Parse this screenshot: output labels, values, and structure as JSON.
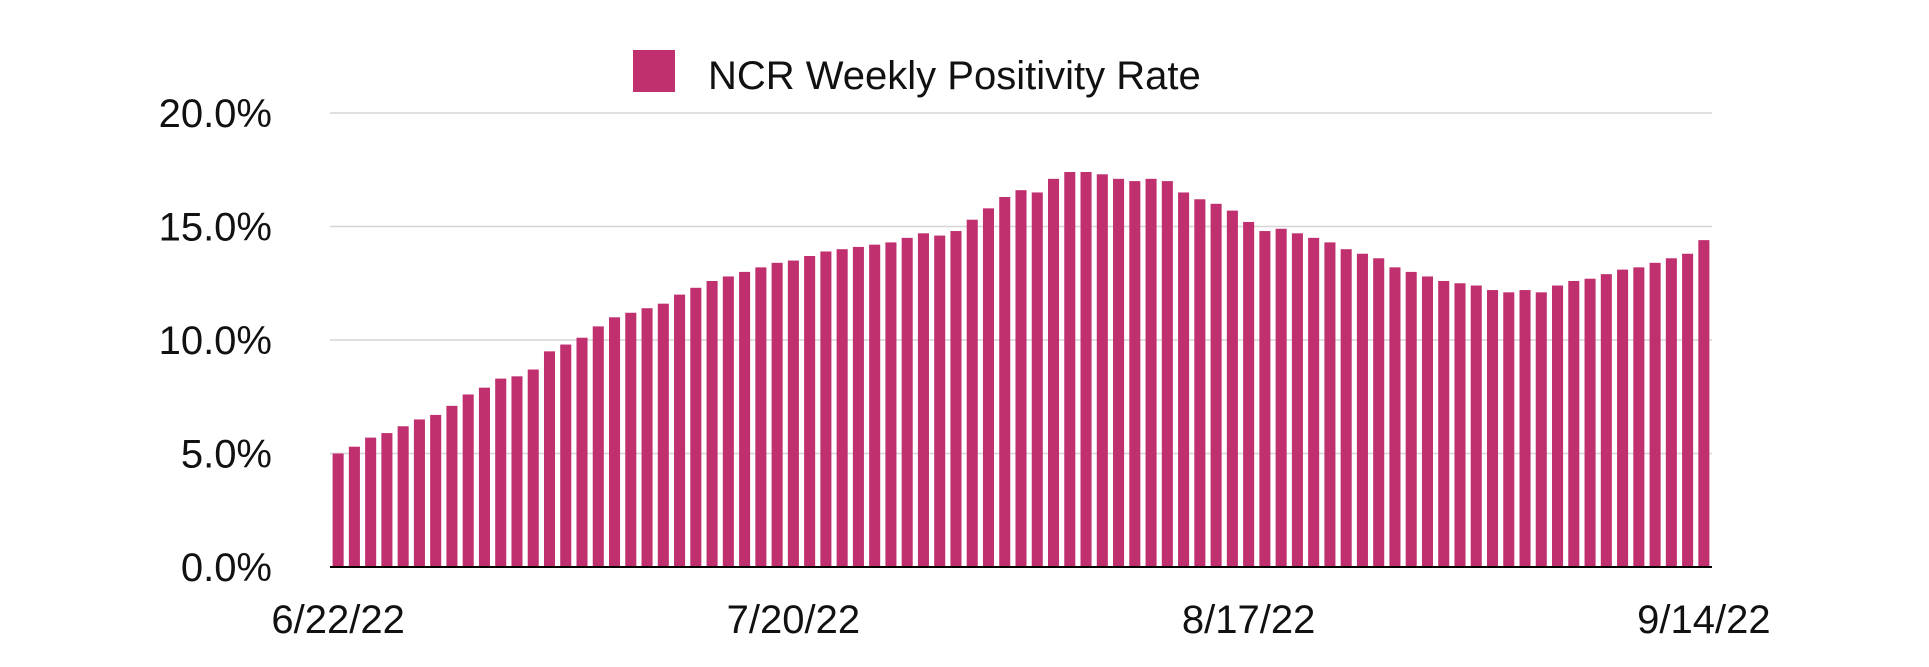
{
  "chart_data": {
    "type": "bar",
    "legend": {
      "label": "NCR Weekly Positivity Rate",
      "position": "top-center"
    },
    "color": "#c0306f",
    "ylim": [
      0,
      20
    ],
    "y_ticks": [
      "0.0%",
      "5.0%",
      "10.0%",
      "15.0%",
      "20.0%"
    ],
    "x_ticks": [
      {
        "label": "6/22/22",
        "index": 0
      },
      {
        "label": "7/20/22",
        "index": 28
      },
      {
        "label": "8/17/22",
        "index": 56
      },
      {
        "label": "9/14/22",
        "index": 84
      }
    ],
    "grid": true,
    "categories": [
      "6/22/22",
      "6/23/22",
      "6/24/22",
      "6/25/22",
      "6/26/22",
      "6/27/22",
      "6/28/22",
      "6/29/22",
      "6/30/22",
      "7/1/22",
      "7/2/22",
      "7/3/22",
      "7/4/22",
      "7/5/22",
      "7/6/22",
      "7/7/22",
      "7/8/22",
      "7/9/22",
      "7/10/22",
      "7/11/22",
      "7/12/22",
      "7/13/22",
      "7/14/22",
      "7/15/22",
      "7/16/22",
      "7/17/22",
      "7/18/22",
      "7/19/22",
      "7/20/22",
      "7/21/22",
      "7/22/22",
      "7/23/22",
      "7/24/22",
      "7/25/22",
      "7/26/22",
      "7/27/22",
      "7/28/22",
      "7/29/22",
      "7/30/22",
      "7/31/22",
      "8/1/22",
      "8/2/22",
      "8/3/22",
      "8/4/22",
      "8/5/22",
      "8/6/22",
      "8/7/22",
      "8/8/22",
      "8/9/22",
      "8/10/22",
      "8/11/22",
      "8/12/22",
      "8/13/22",
      "8/14/22",
      "8/15/22",
      "8/16/22",
      "8/17/22",
      "8/18/22",
      "8/19/22",
      "8/20/22",
      "8/21/22",
      "8/22/22",
      "8/23/22",
      "8/24/22",
      "8/25/22",
      "8/26/22",
      "8/27/22",
      "8/28/22",
      "8/29/22",
      "8/30/22",
      "8/31/22",
      "9/1/22",
      "9/2/22",
      "9/3/22",
      "9/4/22",
      "9/5/22",
      "9/6/22",
      "9/7/22",
      "9/8/22",
      "9/9/22",
      "9/10/22",
      "9/11/22",
      "9/12/22",
      "9/13/22",
      "9/14/22"
    ],
    "values": [
      5.0,
      5.3,
      5.7,
      5.9,
      6.2,
      6.5,
      6.7,
      7.1,
      7.6,
      7.9,
      8.3,
      8.4,
      8.7,
      9.5,
      9.8,
      10.1,
      10.6,
      11.0,
      11.2,
      11.4,
      11.6,
      12.0,
      12.3,
      12.6,
      12.8,
      13.0,
      13.2,
      13.4,
      13.5,
      13.7,
      13.9,
      14.0,
      14.1,
      14.2,
      14.3,
      14.5,
      14.7,
      14.6,
      14.8,
      15.3,
      15.8,
      16.3,
      16.6,
      16.5,
      17.1,
      17.4,
      17.4,
      17.3,
      17.1,
      17.0,
      17.1,
      17.0,
      16.5,
      16.2,
      16.0,
      15.7,
      15.2,
      14.8,
      14.9,
      14.7,
      14.5,
      14.3,
      14.0,
      13.8,
      13.6,
      13.2,
      13.0,
      12.8,
      12.6,
      12.5,
      12.4,
      12.2,
      12.1,
      12.2,
      12.1,
      12.4,
      12.6,
      12.7,
      12.9,
      13.1,
      13.2,
      13.4,
      13.6,
      13.8,
      14.4
    ]
  }
}
